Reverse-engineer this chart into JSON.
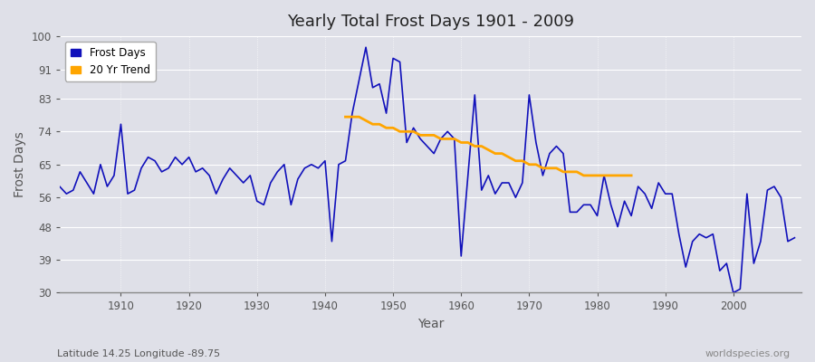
{
  "title": "Yearly Total Frost Days 1901 - 2009",
  "xlabel": "Year",
  "ylabel": "Frost Days",
  "subtitle": "Latitude 14.25 Longitude -89.75",
  "watermark": "worldspecies.org",
  "ylim": [
    30,
    100
  ],
  "yticks": [
    30,
    39,
    48,
    56,
    65,
    74,
    83,
    91,
    100
  ],
  "xlim": [
    1901,
    2010
  ],
  "xticks": [
    1910,
    1920,
    1930,
    1940,
    1950,
    1960,
    1970,
    1980,
    1990,
    2000
  ],
  "background_color": "#dfe0e8",
  "plot_bg_color": "#dfe0e8",
  "line_color": "#1111bb",
  "trend_color": "#FFA500",
  "years": [
    1901,
    1902,
    1903,
    1904,
    1905,
    1906,
    1907,
    1908,
    1909,
    1910,
    1911,
    1912,
    1913,
    1914,
    1915,
    1916,
    1917,
    1918,
    1919,
    1920,
    1921,
    1922,
    1923,
    1924,
    1925,
    1926,
    1927,
    1928,
    1929,
    1930,
    1931,
    1932,
    1933,
    1934,
    1935,
    1936,
    1937,
    1938,
    1939,
    1940,
    1941,
    1942,
    1943,
    1944,
    1945,
    1946,
    1947,
    1948,
    1949,
    1950,
    1951,
    1952,
    1953,
    1954,
    1955,
    1956,
    1957,
    1958,
    1959,
    1960,
    1961,
    1962,
    1963,
    1964,
    1965,
    1966,
    1967,
    1968,
    1969,
    1970,
    1971,
    1972,
    1973,
    1974,
    1975,
    1976,
    1977,
    1978,
    1979,
    1980,
    1981,
    1982,
    1983,
    1984,
    1985,
    1986,
    1987,
    1988,
    1989,
    1990,
    1991,
    1992,
    1993,
    1994,
    1995,
    1996,
    1997,
    1998,
    1999,
    2000,
    2001,
    2002,
    2003,
    2004,
    2005,
    2006,
    2007,
    2008,
    2009
  ],
  "frost_days": [
    59,
    57,
    58,
    63,
    60,
    57,
    65,
    59,
    62,
    76,
    57,
    58,
    64,
    67,
    66,
    63,
    64,
    67,
    65,
    67,
    63,
    64,
    62,
    57,
    61,
    64,
    62,
    60,
    62,
    55,
    54,
    60,
    63,
    65,
    54,
    61,
    64,
    65,
    64,
    66,
    44,
    65,
    66,
    79,
    88,
    97,
    86,
    87,
    79,
    94,
    93,
    71,
    75,
    72,
    70,
    68,
    72,
    74,
    72,
    40,
    62,
    84,
    58,
    62,
    57,
    60,
    60,
    56,
    60,
    84,
    71,
    62,
    68,
    70,
    68,
    52,
    52,
    54,
    54,
    51,
    62,
    54,
    48,
    55,
    51,
    59,
    57,
    53,
    60,
    57,
    57,
    46,
    37,
    44,
    46,
    45,
    46,
    36,
    38,
    30,
    31,
    57,
    38,
    44,
    58,
    59,
    56,
    44,
    45
  ],
  "trend_years": [
    1943,
    1944,
    1945,
    1946,
    1947,
    1948,
    1949,
    1950,
    1951,
    1952,
    1953,
    1954,
    1955,
    1956,
    1957,
    1958,
    1959,
    1960,
    1961,
    1962,
    1963,
    1964,
    1965,
    1966,
    1967,
    1968,
    1969,
    1970,
    1971,
    1972,
    1973,
    1974,
    1975,
    1976,
    1977,
    1978,
    1979,
    1980,
    1981,
    1982,
    1983,
    1984,
    1985
  ],
  "trend_values": [
    78,
    78,
    78,
    77,
    76,
    76,
    75,
    75,
    74,
    74,
    74,
    73,
    73,
    73,
    72,
    72,
    72,
    71,
    71,
    70,
    70,
    69,
    68,
    68,
    67,
    66,
    66,
    65,
    65,
    64,
    64,
    64,
    63,
    63,
    63,
    62,
    62,
    62,
    62,
    62,
    62,
    62,
    62
  ]
}
